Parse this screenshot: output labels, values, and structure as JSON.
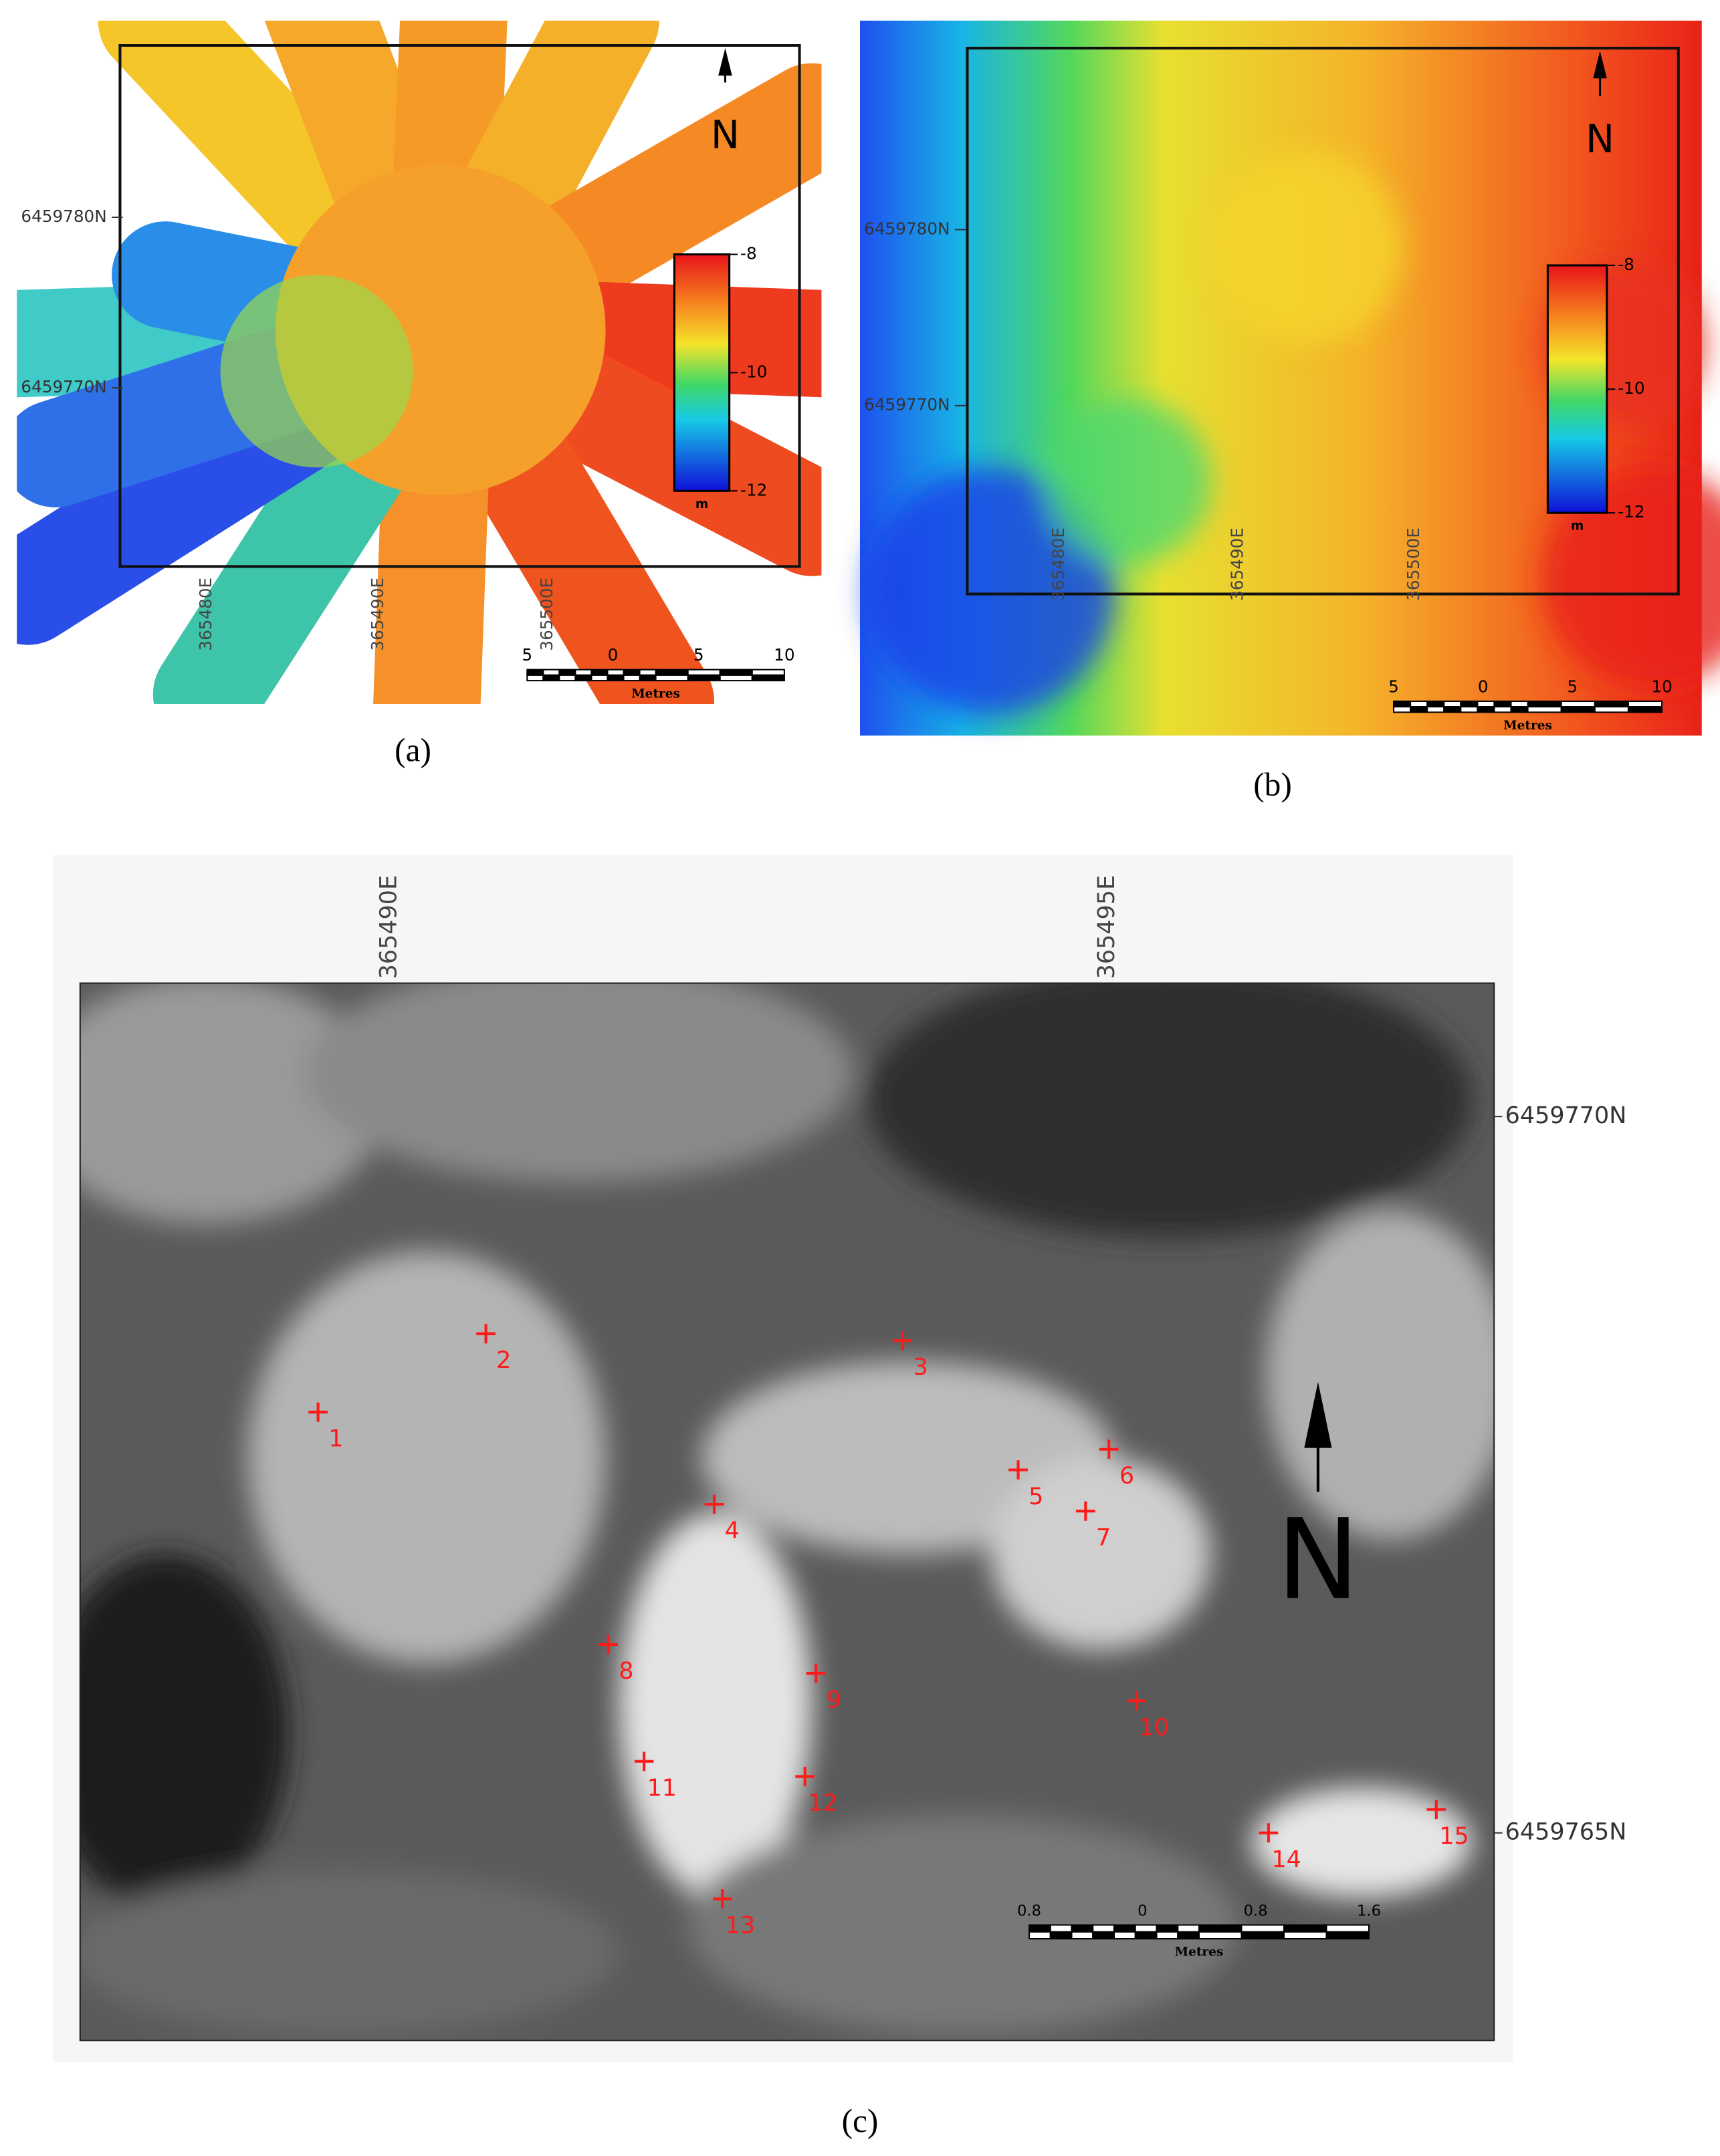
{
  "panels": [
    {
      "caption": "(a)",
      "northing_labels": [
        "6459780N",
        "6459770N"
      ],
      "easting_labels": [
        "365480E",
        "365490E",
        "365500E"
      ],
      "colorbar_labels": [
        "-8",
        "-10",
        "-12"
      ],
      "colorbar_unit": "m",
      "north": "N",
      "scale_labels": [
        "5",
        "0",
        "5",
        "10"
      ],
      "scale_unit": "Metres"
    },
    {
      "caption": "(b)",
      "northing_labels": [
        "6459780N",
        "6459770N"
      ],
      "easting_labels": [
        "365480E",
        "365490E",
        "365500E"
      ],
      "colorbar_labels": [
        "-8",
        "-10",
        "-12"
      ],
      "colorbar_unit": "m",
      "north": "N",
      "scale_labels": [
        "5",
        "0",
        "5",
        "10"
      ],
      "scale_unit": "Metres"
    },
    {
      "caption": "(c)",
      "northing_labels": [
        "6459770N",
        "6459765N"
      ],
      "easting_labels": [
        "365490E",
        "365495E"
      ],
      "north": "N",
      "scale_labels": [
        "0.8",
        "0",
        "0.8",
        "1.6"
      ],
      "scale_unit": "Metres",
      "point_labels": [
        "1",
        "2",
        "3",
        "4",
        "5",
        "6",
        "7",
        "8",
        "9",
        "10",
        "11",
        "12",
        "13",
        "14",
        "15"
      ]
    }
  ]
}
